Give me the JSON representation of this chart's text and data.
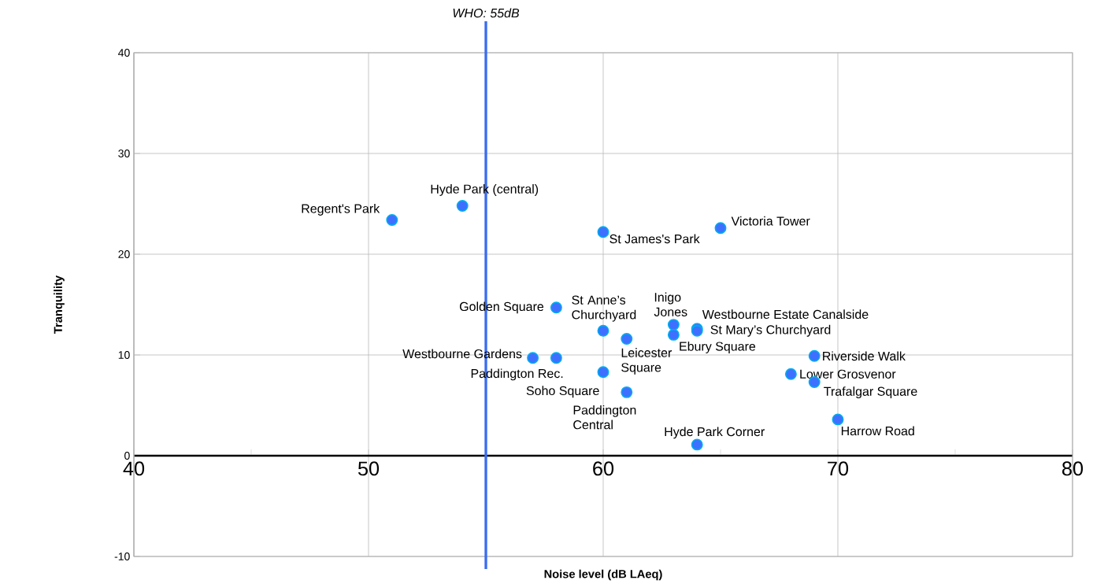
{
  "chart_data": {
    "type": "scatter",
    "xlabel": "Noise level (dB LAeq)",
    "ylabel": "Tranquility",
    "xlim": [
      40,
      80
    ],
    "ylim": [
      -10,
      40
    ],
    "xticks": [
      40,
      {
        "value": 45,
        "label": null
      },
      50,
      {
        "value": 55,
        "label": null
      },
      60,
      {
        "value": 65,
        "label": null
      },
      70,
      {
        "value": 75,
        "label": null
      },
      80
    ],
    "yticks": [
      -10,
      0,
      10,
      20,
      30,
      40
    ],
    "grid": true,
    "marker": "circle",
    "series": [
      {
        "color": "#3f6fff",
        "x": [
          51,
          54,
          60,
          65,
          58,
          60,
          63,
          64,
          64,
          63,
          61,
          57,
          58,
          60,
          61,
          64,
          69,
          68,
          69,
          70
        ],
        "values": [
          23.4,
          24.8,
          22.2,
          22.6,
          14.7,
          12.4,
          13.0,
          12.6,
          12.4,
          12.0,
          11.6,
          9.7,
          9.7,
          8.3,
          6.3,
          1.1,
          9.9,
          8.1,
          7.3,
          3.6
        ]
      }
    ],
    "ref_lines": [
      {
        "axis": "x",
        "value": 55,
        "label": "WHO: 55dB",
        "color": "#3a6cf0"
      }
    ],
    "annotations": [
      {
        "text": "Regent's Park",
        "x": 51,
        "y": 23.4
      },
      {
        "text": "Hyde Park (central)",
        "x": 54,
        "y": 24.8
      },
      {
        "text": "St James's Park",
        "x": 60,
        "y": 22.2
      },
      {
        "text": "Victoria Tower",
        "x": 65,
        "y": 22.6
      },
      {
        "text": "Golden Square",
        "x": 58,
        "y": 14.7
      },
      {
        "text": "St Anne’s Churchyard",
        "x": 60,
        "y": 12.4
      },
      {
        "text": "Inigo Jones",
        "x": 63,
        "y": 13.0
      },
      {
        "text": "Westbourne Estate Canalside",
        "x": 64,
        "y": 12.6
      },
      {
        "text": "St Mary’s Churchyard",
        "x": 64,
        "y": 12.4
      },
      {
        "text": "Ebury Square",
        "x": 63,
        "y": 12.0
      },
      {
        "text": "Leicester Square",
        "x": 61,
        "y": 11.6
      },
      {
        "text": "Westbourne Gardens",
        "x": 57,
        "y": 9.7
      },
      {
        "text": "Paddington Rec.",
        "x": 58,
        "y": 9.7
      },
      {
        "text": "Soho Square",
        "x": 60,
        "y": 8.3
      },
      {
        "text": "Paddington Central",
        "x": 61,
        "y": 6.3
      },
      {
        "text": "Hyde Park Corner",
        "x": 64,
        "y": 1.1
      },
      {
        "text": "Riverside Walk",
        "x": 69,
        "y": 9.9
      },
      {
        "text": "Lower Grosvenor",
        "x": 68,
        "y": 8.1
      },
      {
        "text": "Trafalgar Square",
        "x": 69,
        "y": 7.3
      },
      {
        "text": "Harrow Road",
        "x": 70,
        "y": 3.6
      }
    ]
  }
}
